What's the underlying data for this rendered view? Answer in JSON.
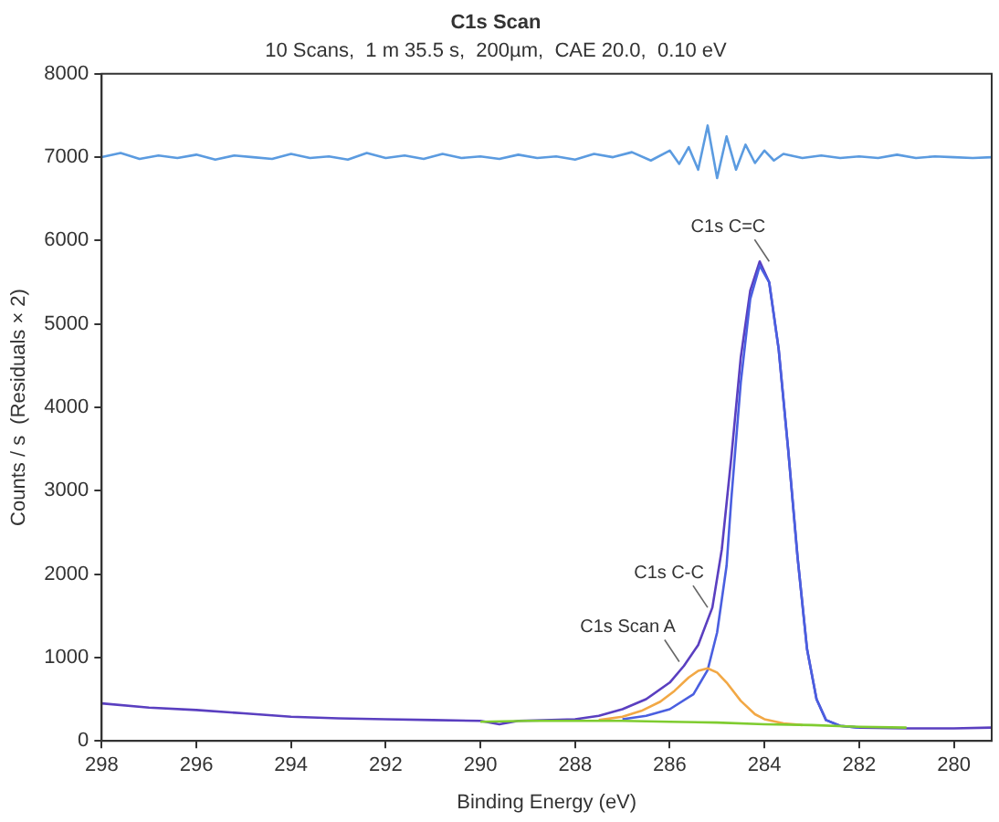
{
  "chart_data": {
    "type": "line",
    "title": "C1s Scan",
    "subtitle": "10 Scans,  1 m 35.5 s,  200µm,  CAE 20.0,  0.10 eV",
    "xlabel": "Binding Energy (eV)",
    "ylabel": "Counts / s  (Residuals × 2)",
    "xlim": [
      298,
      279.2
    ],
    "xticks": [
      298,
      296,
      294,
      292,
      290,
      288,
      286,
      284,
      282,
      280
    ],
    "ylim": [
      0,
      8000
    ],
    "yticks": [
      0,
      1000,
      2000,
      3000,
      4000,
      5000,
      6000,
      7000,
      8000
    ],
    "grid": false,
    "legend": false,
    "marker": "none",
    "line_style": "solid",
    "annotations": [
      {
        "text": "C1s C=C",
        "x": 283.9,
        "y": 5750
      },
      {
        "text": "C1s C-C",
        "x": 285.2,
        "y": 1600
      },
      {
        "text": "C1s Scan A",
        "x": 285.8,
        "y": 950
      }
    ],
    "series": [
      {
        "color": "#5b9be0",
        "x": [
          298,
          297.6,
          297.2,
          296.8,
          296.4,
          296,
          295.6,
          295.2,
          294.8,
          294.4,
          294,
          293.6,
          293.2,
          292.8,
          292.4,
          292,
          291.6,
          291.2,
          290.8,
          290.4,
          290,
          289.6,
          289.2,
          288.8,
          288.4,
          288,
          287.6,
          287.2,
          286.8,
          286.4,
          286,
          285.8,
          285.6,
          285.4,
          285.2,
          285,
          284.8,
          284.6,
          284.4,
          284.2,
          284,
          283.8,
          283.6,
          283.2,
          282.8,
          282.4,
          282,
          281.6,
          281.2,
          280.8,
          280.4,
          280,
          279.6,
          279.2
        ],
        "values": [
          7000,
          7050,
          6980,
          7020,
          6990,
          7030,
          6970,
          7020,
          7000,
          6980,
          7040,
          6990,
          7010,
          6970,
          7050,
          6990,
          7020,
          6980,
          7040,
          6990,
          7010,
          6980,
          7030,
          6990,
          7010,
          6970,
          7040,
          7000,
          7060,
          6960,
          7080,
          6920,
          7120,
          6850,
          7380,
          6750,
          7250,
          6850,
          7150,
          6930,
          7080,
          6960,
          7040,
          6990,
          7020,
          6990,
          7010,
          6990,
          7030,
          6990,
          7010,
          7000,
          6990,
          7000
        ]
      },
      {
        "color": "#7fcc30",
        "x": [
          290,
          289,
          288,
          287,
          286,
          285,
          284,
          283,
          282,
          281
        ],
        "values": [
          230,
          240,
          240,
          240,
          230,
          220,
          200,
          190,
          170,
          160
        ]
      },
      {
        "color": "#f2a845",
        "x": [
          287.5,
          287,
          286.6,
          286.2,
          285.9,
          285.6,
          285.4,
          285.2,
          285,
          284.8,
          284.5,
          284.2,
          284,
          283.6,
          283.2
        ],
        "values": [
          250,
          290,
          360,
          470,
          600,
          760,
          840,
          870,
          820,
          700,
          480,
          320,
          260,
          210,
          190
        ]
      },
      {
        "color": "#4a5fe0",
        "x": [
          287,
          286.5,
          286,
          285.5,
          285.2,
          285,
          284.8,
          284.7,
          284.5,
          284.3,
          284.1,
          283.9,
          283.7,
          283.5,
          283.3,
          283.1,
          282.9,
          282.7,
          282.4,
          282
        ],
        "values": [
          260,
          300,
          380,
          560,
          850,
          1300,
          2100,
          2900,
          4300,
          5300,
          5700,
          5500,
          4700,
          3500,
          2200,
          1100,
          500,
          250,
          180,
          160
        ]
      },
      {
        "color": "#5a3fc0",
        "x": [
          298,
          297,
          296,
          295,
          294,
          293,
          292,
          291,
          290,
          289.6,
          289.2,
          288.5,
          288,
          287.5,
          287,
          286.5,
          286,
          285.7,
          285.4,
          285.1,
          284.9,
          284.7,
          284.5,
          284.3,
          284.1,
          283.9,
          283.7,
          283.5,
          283.3,
          283.1,
          282.9,
          282.7,
          282.4,
          282,
          281,
          280,
          279.2
        ],
        "values": [
          450,
          400,
          370,
          330,
          290,
          270,
          260,
          250,
          240,
          200,
          240,
          250,
          260,
          300,
          380,
          500,
          700,
          900,
          1150,
          1600,
          2300,
          3400,
          4600,
          5400,
          5750,
          5500,
          4700,
          3500,
          2200,
          1100,
          500,
          250,
          180,
          160,
          150,
          150,
          160
        ]
      }
    ]
  }
}
